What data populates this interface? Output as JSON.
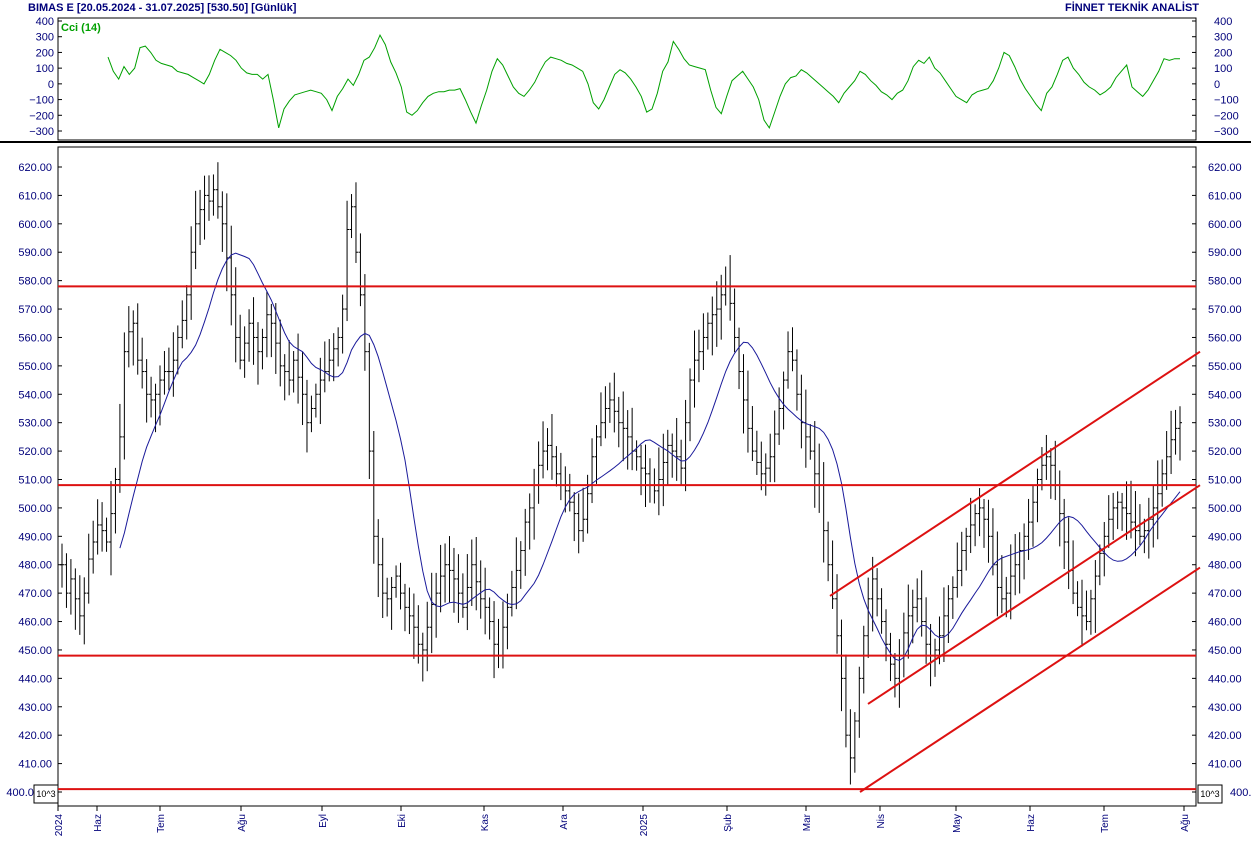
{
  "header": {
    "title": "BIMAS E  [20.05.2024 - 31.07.2025]  [530.50]  [Günlük]",
    "brand": "FİNNET TEKNİK ANALİST"
  },
  "indicator": {
    "label": "Cci (14)",
    "color": "#00a000",
    "ticks": [
      400,
      300,
      200,
      100,
      0,
      -100,
      -200,
      -300
    ],
    "tick_labels": [
      "400",
      "300",
      "200",
      "100",
      "0",
      "−100",
      "−200",
      "−300"
    ],
    "values": [
      170,
      80,
      30,
      110,
      60,
      100,
      230,
      240,
      200,
      150,
      130,
      120,
      110,
      80,
      70,
      60,
      40,
      20,
      0,
      60,
      150,
      220,
      200,
      180,
      150,
      100,
      70,
      60,
      60,
      30,
      60,
      -100,
      -280,
      -160,
      -110,
      -70,
      -60,
      -50,
      -40,
      -50,
      -60,
      -100,
      -170,
      -80,
      -30,
      30,
      -10,
      60,
      150,
      170,
      230,
      310,
      250,
      140,
      70,
      -20,
      -180,
      -200,
      -170,
      -120,
      -80,
      -60,
      -50,
      -50,
      -40,
      -40,
      -30,
      -100,
      -180,
      -250,
      -140,
      -40,
      80,
      160,
      120,
      50,
      -20,
      -60,
      -80,
      -40,
      10,
      80,
      140,
      170,
      160,
      150,
      130,
      120,
      100,
      80,
      0,
      -120,
      -160,
      -100,
      -20,
      60,
      90,
      70,
      30,
      -20,
      -80,
      -180,
      -160,
      -60,
      80,
      140,
      270,
      220,
      160,
      120,
      110,
      100,
      90,
      -40,
      -150,
      -190,
      -80,
      20,
      50,
      80,
      30,
      -20,
      -100,
      -230,
      -280,
      -180,
      -80,
      0,
      40,
      50,
      90,
      70,
      40,
      10,
      -20,
      -50,
      -80,
      -120,
      -60,
      -20,
      20,
      80,
      60,
      20,
      -10,
      -50,
      -70,
      -100,
      -60,
      -40,
      20,
      110,
      150,
      130,
      170,
      100,
      70,
      20,
      -30,
      -80,
      -100,
      -120,
      -70,
      -50,
      -40,
      -30,
      20,
      100,
      200,
      180,
      110,
      30,
      -30,
      -80,
      -130,
      -170,
      -60,
      -20,
      60,
      150,
      170,
      100,
      60,
      10,
      -20,
      -40,
      -70,
      -50,
      -20,
      40,
      80,
      120,
      -20,
      -50,
      -80,
      -40,
      20,
      80,
      160,
      150,
      160,
      160
    ]
  },
  "price": {
    "ticks": [
      620,
      610,
      600,
      590,
      580,
      570,
      560,
      550,
      540,
      530,
      520,
      510,
      500,
      490,
      480,
      470,
      460,
      450,
      440,
      430,
      420,
      410,
      400
    ],
    "tick_labels": [
      "620.00",
      "610.00",
      "600.00",
      "590.00",
      "580.00",
      "570.00",
      "560.00",
      "550.00",
      "540.00",
      "530.00",
      "520.00",
      "510.00",
      "500.00",
      "490.00",
      "480.00",
      "470.00",
      "460.00",
      "450.00",
      "440.00",
      "430.00",
      "420.00",
      "410.00",
      "400.00"
    ],
    "axis_badge": "10^3",
    "bar_color": "#000000",
    "ma_color": "#1a1a9a",
    "level_color": "#dd1111",
    "horizontal_levels": [
      578,
      508,
      448,
      401
    ],
    "channel_lines": [
      {
        "x1": 830,
        "y1": 469,
        "x2": 1200,
        "y2": 555
      },
      {
        "x1": 868,
        "y1": 431,
        "x2": 1200,
        "y2": 508
      },
      {
        "x1": 860,
        "y1": 400,
        "x2": 1200,
        "y2": 479
      }
    ],
    "x_labels": [
      "2024",
      "Haz",
      "Tem",
      "Ağu",
      "Eyl",
      "Eki",
      "Kas",
      "Ara",
      "2025",
      "Şub",
      "Mar",
      "Nis",
      "May",
      "Haz",
      "Tem",
      "Ağu"
    ]
  },
  "chart_data": {
    "type": "line",
    "title": "BIMAS E  [20.05.2024 - 31.07.2025]  [530.50]  [Günlük]",
    "series": [
      {
        "name": "Cci (14)",
        "values": "see indicator.values"
      }
    ],
    "close": [
      480,
      470,
      475,
      468,
      462,
      470,
      482,
      488,
      494,
      492,
      488,
      498,
      510,
      525,
      555,
      562,
      565,
      552,
      548,
      540,
      538,
      540,
      545,
      548,
      548,
      552,
      560,
      566,
      575,
      590,
      600,
      605,
      610,
      608,
      612,
      606,
      600,
      588,
      575,
      560,
      552,
      558,
      565,
      560,
      555,
      560,
      568,
      565,
      558,
      550,
      548,
      545,
      552,
      546,
      540,
      530,
      535,
      540,
      545,
      548,
      552,
      556,
      560,
      570,
      598,
      606,
      590,
      575,
      555,
      520,
      490,
      480,
      470,
      468,
      472,
      476,
      470,
      465,
      462,
      458,
      452,
      450,
      458,
      466,
      470,
      476,
      480,
      478,
      475,
      470,
      465,
      472,
      480,
      474,
      468,
      465,
      460,
      452,
      448,
      458,
      465,
      472,
      478,
      485,
      495,
      500,
      508,
      515,
      520,
      522,
      518,
      512,
      508,
      506,
      502,
      498,
      492,
      496,
      505,
      518,
      525,
      530,
      535,
      538,
      534,
      530,
      528,
      525,
      520,
      518,
      514,
      512,
      508,
      506,
      510,
      516,
      522,
      520,
      518,
      514,
      530,
      545,
      552,
      555,
      560,
      565,
      568,
      570,
      575,
      578,
      572,
      560,
      548,
      538,
      528,
      520,
      516,
      512,
      514,
      518,
      526,
      535,
      545,
      555,
      552,
      540,
      530,
      525,
      520,
      512,
      508,
      492,
      480,
      468,
      455,
      440,
      420,
      412,
      425,
      440,
      455,
      468,
      475,
      468,
      460,
      452,
      445,
      440,
      448,
      456,
      462,
      465,
      468,
      460,
      452,
      448,
      450,
      455,
      462,
      468,
      472,
      478,
      485,
      490,
      494,
      498,
      500,
      496,
      490,
      480,
      472,
      468,
      470,
      476,
      480,
      485,
      490,
      495,
      502,
      510,
      515,
      518,
      515,
      508,
      498,
      488,
      478,
      470,
      465,
      462,
      460,
      468,
      476,
      484,
      490,
      496,
      500,
      502,
      500,
      498,
      495,
      492,
      490,
      492,
      496,
      500,
      505,
      512,
      518,
      524,
      528,
      530
    ],
    "ma": [],
    "horizontal_levels": [
      578,
      508,
      448,
      401
    ],
    "ylim": [
      400,
      625
    ]
  }
}
